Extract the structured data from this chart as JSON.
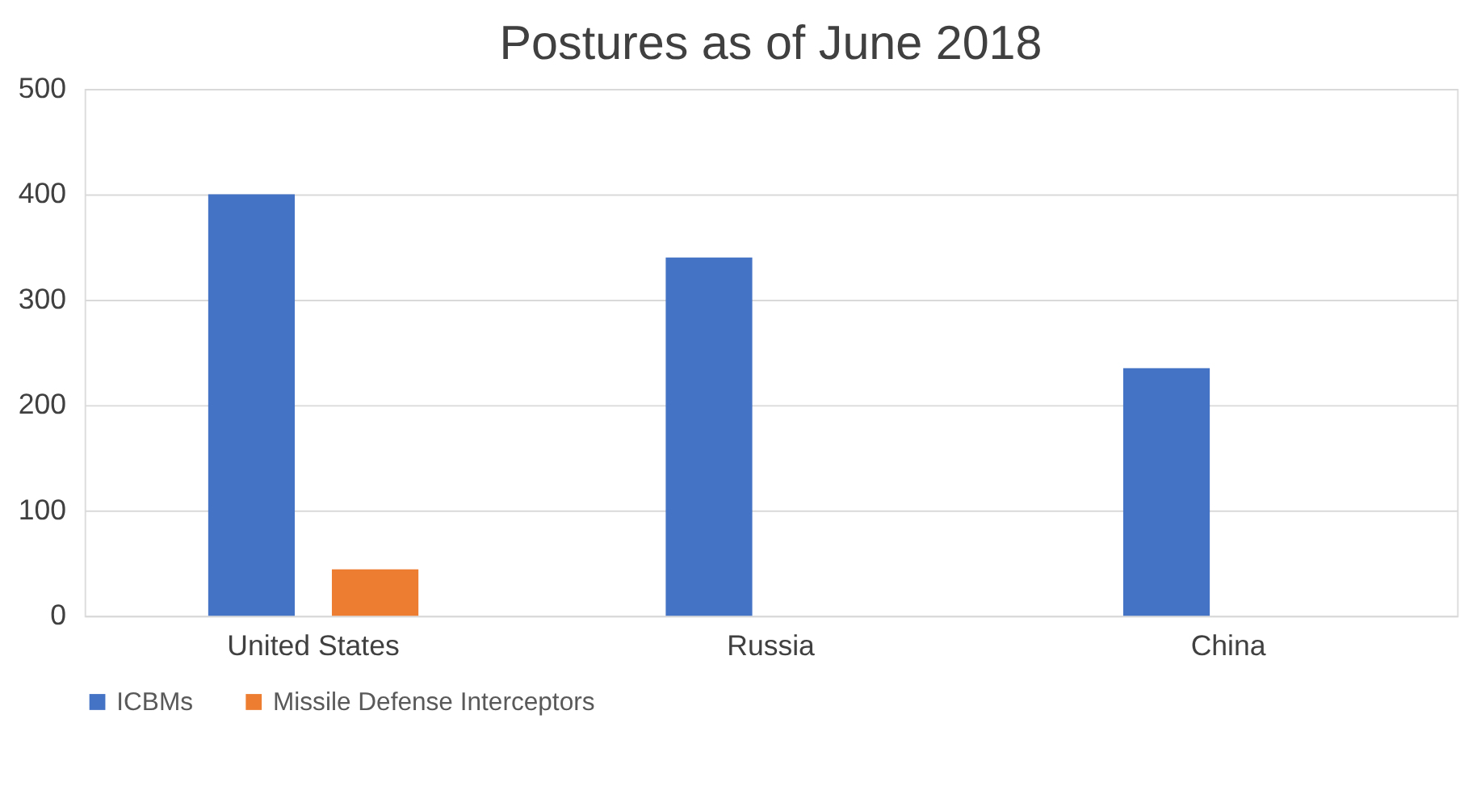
{
  "chart_data": {
    "type": "bar",
    "title": "Postures as of June 2018",
    "categories": [
      "United States",
      "Russia",
      "China"
    ],
    "series": [
      {
        "name": "ICBMs",
        "color": "#4472c4",
        "values": [
          400,
          340,
          235
        ]
      },
      {
        "name": "Missile Defense Interceptors",
        "color": "#ed7d31",
        "values": [
          44,
          null,
          null
        ]
      }
    ],
    "ylim": [
      0,
      500
    ],
    "yticks": [
      0,
      100,
      200,
      300,
      400,
      500
    ],
    "grid": "y",
    "legend": "bottom"
  }
}
